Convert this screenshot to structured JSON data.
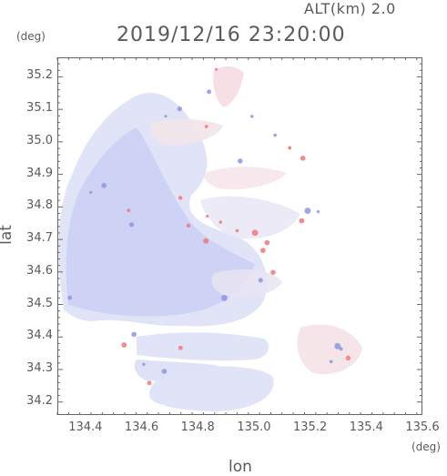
{
  "header": {
    "altitude": "ALT(km) 2.0",
    "timestamp": "2019/12/16 23:20:00"
  },
  "axes": {
    "y_unit": "(deg)",
    "x_unit": "(deg)",
    "y_title": "lat",
    "x_title": "lon",
    "y_ticks": [
      "35.2",
      "35.1",
      "35.0",
      "34.9",
      "34.8",
      "34.7",
      "34.6",
      "34.5",
      "34.4",
      "34.3",
      "34.2"
    ],
    "x_ticks": [
      "134.4",
      "134.6",
      "134.8",
      "135.0",
      "135.2",
      "135.4",
      "135.6"
    ]
  },
  "map": {
    "lon_range": [
      134.3,
      135.6
    ],
    "lat_range": [
      34.16,
      35.26
    ],
    "colors": {
      "approaching": "#8c96e6",
      "receding": "#f07878",
      "background_echo": "#dfe2f7",
      "frame": "#666666"
    }
  }
}
